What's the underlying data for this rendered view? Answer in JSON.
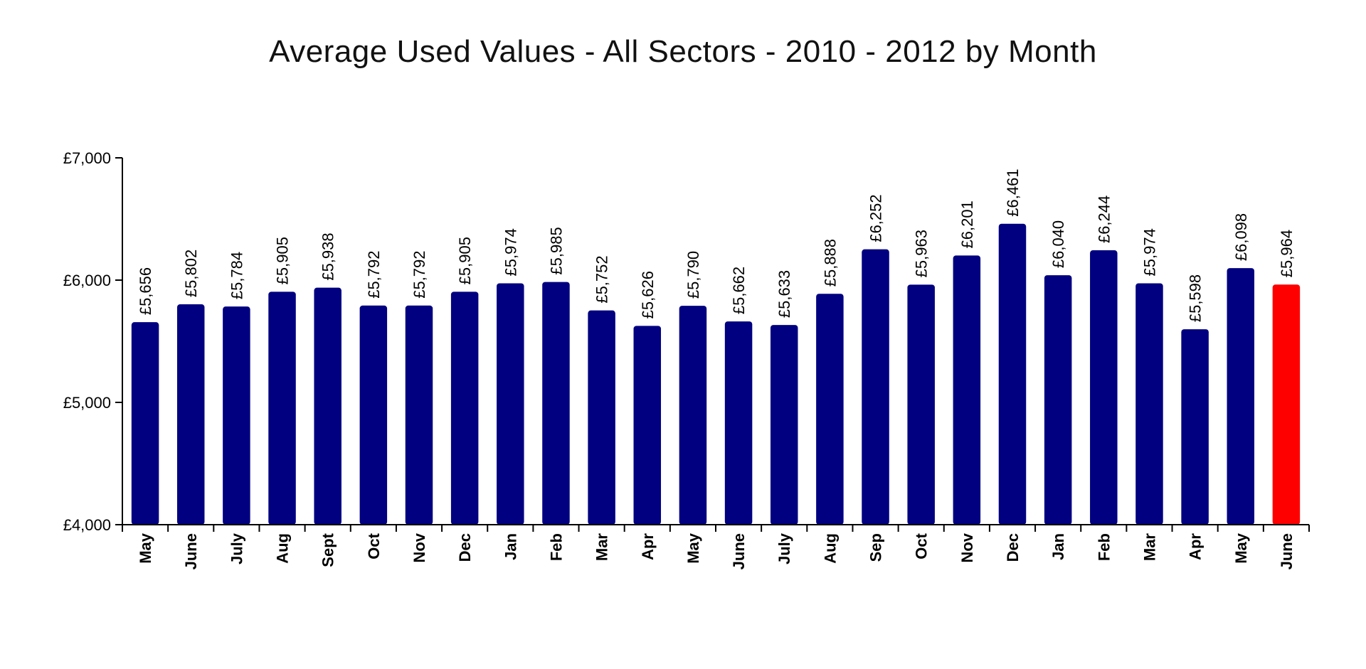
{
  "chart_data": {
    "type": "bar",
    "title": "Average Used Values - All Sectors - 2010 - 2012 by Month",
    "xlabel": "",
    "ylabel": "",
    "ylim": [
      4000,
      7000
    ],
    "yticks": [
      4000,
      5000,
      6000,
      7000
    ],
    "ytick_labels": [
      "£4,000",
      "£5,000",
      "£6,000",
      "£7,000"
    ],
    "grid": false,
    "legend": "none",
    "categories": [
      "May",
      "June",
      "July",
      "Aug",
      "Sept",
      "Oct",
      "Nov",
      "Dec",
      "Jan",
      "Feb",
      "Mar",
      "Apr",
      "May",
      "June",
      "July",
      "Aug",
      "Sep",
      "Oct",
      "Nov",
      "Dec",
      "Jan",
      "Feb",
      "Mar",
      "Apr",
      "May",
      "June"
    ],
    "values": [
      5656,
      5802,
      5784,
      5905,
      5938,
      5792,
      5792,
      5905,
      5974,
      5985,
      5752,
      5626,
      5790,
      5662,
      5633,
      5888,
      6252,
      5963,
      6201,
      6461,
      6040,
      6244,
      5974,
      5598,
      6098,
      5964
    ],
    "value_labels": [
      "£5,656",
      "£5,802",
      "£5,784",
      "£5,905",
      "£5,938",
      "£5,792",
      "£5,792",
      "£5,905",
      "£5,974",
      "£5,985",
      "£5,752",
      "£5,626",
      "£5,790",
      "£5,662",
      "£5,633",
      "£5,888",
      "£6,252",
      "£5,963",
      "£6,201",
      "£6,461",
      "£6,040",
      "£6,244",
      "£5,974",
      "£5,598",
      "£6,098",
      "£5,964"
    ],
    "colors": {
      "bar": "#000080",
      "highlight": "#ff0000",
      "axis": "#000000"
    },
    "highlight_index": 25
  }
}
